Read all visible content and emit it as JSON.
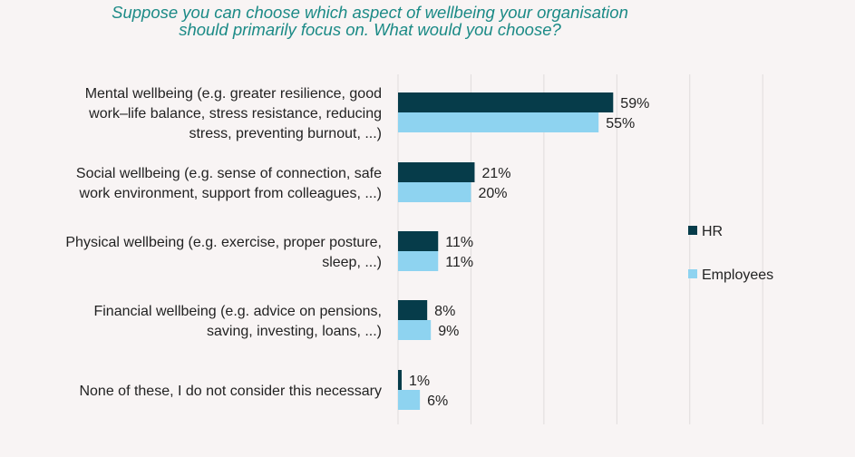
{
  "chart_data": {
    "type": "bar",
    "orientation": "horizontal",
    "title_lines": [
      "Suppose you can choose which aspect of wellbeing your organisation",
      "should primarily focus on. What would you choose?"
    ],
    "categories": [
      [
        "Mental wellbeing (e.g. greater resilience, good",
        "work–life balance, stress resistance, reducing",
        "stress, preventing burnout, ...)"
      ],
      [
        "Social wellbeing (e.g. sense of connection, safe",
        "work environment, support from colleagues, ...)"
      ],
      [
        "Physical wellbeing (e.g. exercise, proper posture,",
        "sleep, ...)"
      ],
      [
        "Financial wellbeing (e.g. advice on pensions,",
        "saving, investing, loans, ...)"
      ],
      [
        "None of these, I do not consider this necessary"
      ]
    ],
    "series": [
      {
        "name": "HR",
        "color": "#063c4a",
        "values": [
          59,
          21,
          11,
          8,
          1
        ],
        "labels": [
          "59%",
          "21%",
          "11%",
          "8%",
          "1%"
        ]
      },
      {
        "name": "Employees",
        "color": "#8ed3f0",
        "values": [
          55,
          20,
          11,
          9,
          6
        ],
        "labels": [
          "55%",
          "20%",
          "11%",
          "9%",
          "6%"
        ]
      }
    ],
    "xlim": [
      0,
      100
    ],
    "grid": true,
    "legend": "right"
  }
}
